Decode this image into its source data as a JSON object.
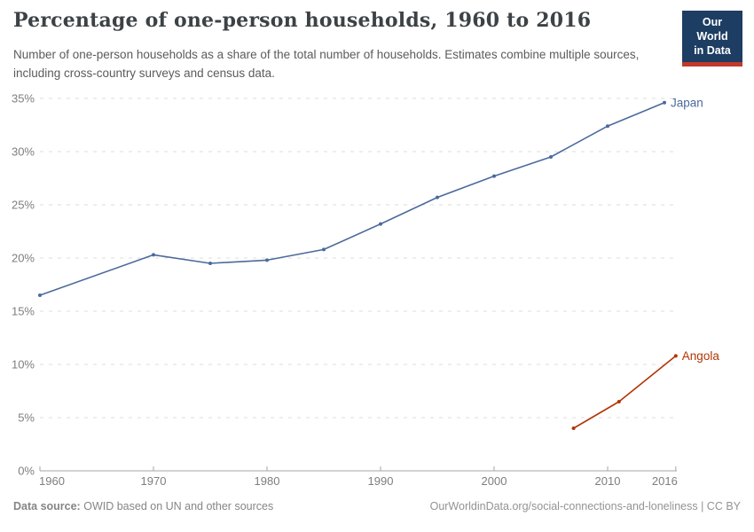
{
  "header": {
    "title": "Percentage of one-person households, 1960 to 2016",
    "subtitle": "Number of one-person households as a share of the total number of households. Estimates combine multiple sources, including cross-country surveys and census data.",
    "logo_line1": "Our World",
    "logo_line2": "in Data"
  },
  "chart_data": {
    "type": "line",
    "title": "Percentage of one-person households, 1960 to 2016",
    "xlabel": "",
    "ylabel": "",
    "x_range": [
      1960,
      2016
    ],
    "ylim": [
      0,
      35
    ],
    "yticks": [
      0,
      5,
      10,
      15,
      20,
      25,
      30,
      35
    ],
    "ytick_suffix": "%",
    "xticks": [
      1960,
      1970,
      1980,
      1990,
      2000,
      2010,
      2016
    ],
    "grid": "horizontal-dashed",
    "legend_position": "inline-end-of-line-labels",
    "series": [
      {
        "name": "Japan",
        "color": "#4C6A9C",
        "points": [
          [
            1960,
            16.5
          ],
          [
            1970,
            20.3
          ],
          [
            1975,
            19.5
          ],
          [
            1980,
            19.8
          ],
          [
            1985,
            20.8
          ],
          [
            1990,
            23.2
          ],
          [
            1995,
            25.7
          ],
          [
            2000,
            27.7
          ],
          [
            2005,
            29.5
          ],
          [
            2010,
            32.4
          ],
          [
            2015,
            34.6
          ]
        ]
      },
      {
        "name": "Angola",
        "color": "#B13507",
        "points": [
          [
            2007,
            4.0
          ],
          [
            2011,
            6.5
          ],
          [
            2016,
            10.8
          ]
        ]
      }
    ]
  },
  "footer": {
    "source_label": "Data source:",
    "source_value": "OWID based on UN and other sources",
    "credit": "OurWorldinData.org/social-connections-and-loneliness | CC BY"
  },
  "colors": {
    "title_text": "#3C4245",
    "subtitle_text": "#5B5B5B",
    "axis_text": "#7E7E7E",
    "gridline": "#DDDDDD",
    "axis_line": "#A5A5A5",
    "japan_line": "#4C6A9C",
    "angola_line": "#B13507",
    "logo_bg": "#1D3D63",
    "logo_stripe": "#C0392B",
    "footer_text": "#858585"
  }
}
